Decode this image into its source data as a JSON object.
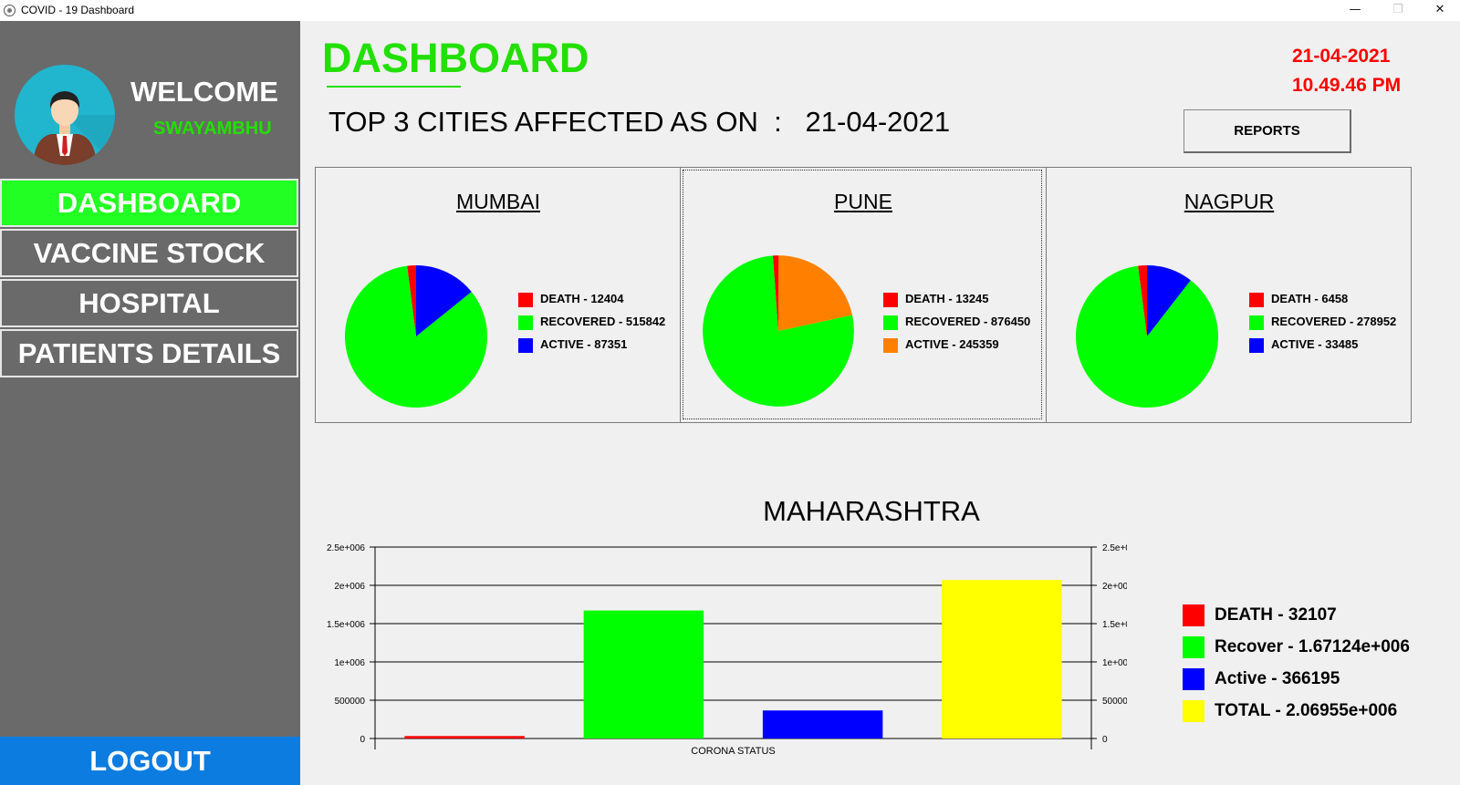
{
  "window": {
    "title": "COVID - 19 Dashboard",
    "minimize": "—",
    "maximize": "❐",
    "close": "✕"
  },
  "sidebar": {
    "welcome": "WELCOME",
    "username": "SWAYAMBHU",
    "items": [
      {
        "label": "DASHBOARD",
        "active": true
      },
      {
        "label": "VACCINE STOCK",
        "active": false
      },
      {
        "label": "HOSPITAL",
        "active": false
      },
      {
        "label": "PATIENTS DETAILS",
        "active": false
      }
    ],
    "logout": "LOGOUT"
  },
  "header": {
    "title": "DASHBOARD",
    "subtitle": "TOP 3 CITIES AFFECTED AS ON  :   21-04-2021",
    "date": "21-04-2021",
    "time": "10.49.46 PM",
    "reports_label": "REPORTS"
  },
  "colors": {
    "accent_green": "#22e000",
    "death": "#ff0000",
    "recovered": "#00ff00",
    "active_blue": "#0000ff",
    "active_orange": "#ff8000",
    "total": "#ffff00",
    "logout_blue": "#0c7ce0"
  },
  "cities": [
    {
      "name": "MUMBAI",
      "legend": [
        "DEATH - 12404",
        "RECOVERED - 515842",
        "ACTIVE - 87351"
      ]
    },
    {
      "name": "PUNE",
      "legend": [
        "DEATH - 13245",
        "RECOVERED - 876450",
        "ACTIVE - 245359"
      ]
    },
    {
      "name": "NAGPUR",
      "legend": [
        "DEATH - 6458",
        "RECOVERED - 278952",
        "ACTIVE - 33485"
      ]
    }
  ],
  "chart_data": [
    {
      "type": "pie",
      "title": "MUMBAI",
      "categories": [
        "DEATH",
        "RECOVERED",
        "ACTIVE"
      ],
      "values": [
        12404,
        515842,
        87351
      ],
      "colors": [
        "#ff0000",
        "#00ff00",
        "#0000ff"
      ]
    },
    {
      "type": "pie",
      "title": "PUNE",
      "categories": [
        "DEATH",
        "RECOVERED",
        "ACTIVE"
      ],
      "values": [
        13245,
        876450,
        245359
      ],
      "colors": [
        "#ff0000",
        "#00ff00",
        "#ff8000"
      ]
    },
    {
      "type": "pie",
      "title": "NAGPUR",
      "categories": [
        "DEATH",
        "RECOVERED",
        "ACTIVE"
      ],
      "values": [
        6458,
        278952,
        33485
      ],
      "colors": [
        "#ff0000",
        "#00ff00",
        "#0000ff"
      ]
    },
    {
      "type": "bar",
      "title": "MAHARASHTRA",
      "xlabel": "CORONA STATUS",
      "ylabel": "",
      "categories": [
        "DEATH",
        "Recover",
        "Active",
        "TOTAL"
      ],
      "values": [
        32107,
        1671240,
        366195,
        2069550
      ],
      "colors": [
        "#ff0000",
        "#00ff00",
        "#0000ff",
        "#ffff00"
      ],
      "ylim": [
        0,
        2500000
      ],
      "yticks": [
        0,
        500000,
        1000000,
        1500000,
        2000000,
        2500000
      ],
      "ytick_labels": [
        "0",
        "500000",
        "1e+006",
        "1.5e+006",
        "2e+006",
        "2.5e+006"
      ],
      "grid": true,
      "legend": [
        "DEATH - 32107",
        "Recover - 1.67124e+006",
        "Active - 366195",
        "TOTAL - 2.06955e+006"
      ],
      "legend_position": "right"
    }
  ]
}
